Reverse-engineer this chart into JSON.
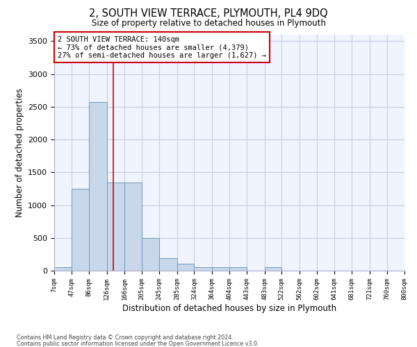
{
  "title": "2, SOUTH VIEW TERRACE, PLYMOUTH, PL4 9DQ",
  "subtitle": "Size of property relative to detached houses in Plymouth",
  "xlabel": "Distribution of detached houses by size in Plymouth",
  "ylabel": "Number of detached properties",
  "bar_color": "#c8d8ea",
  "bar_edge_color": "#7098b8",
  "bar_heights": [
    50,
    1250,
    2570,
    1340,
    1340,
    500,
    190,
    110,
    50,
    50,
    50,
    0,
    50,
    0,
    0,
    0,
    0,
    0,
    0,
    0
  ],
  "bin_edges": [
    7,
    47,
    86,
    126,
    166,
    205,
    245,
    285,
    324,
    364,
    404,
    443,
    483,
    522,
    562,
    602,
    641,
    681,
    721,
    760,
    800
  ],
  "xtick_labels": [
    "7sqm",
    "47sqm",
    "86sqm",
    "126sqm",
    "166sqm",
    "205sqm",
    "245sqm",
    "285sqm",
    "324sqm",
    "364sqm",
    "404sqm",
    "443sqm",
    "483sqm",
    "522sqm",
    "562sqm",
    "602sqm",
    "641sqm",
    "681sqm",
    "721sqm",
    "760sqm",
    "800sqm"
  ],
  "ylim": [
    0,
    3600
  ],
  "yticks": [
    0,
    500,
    1000,
    1500,
    2000,
    2500,
    3000,
    3500
  ],
  "property_size": 140,
  "red_line_color": "#cc0000",
  "annotation_text": "2 SOUTH VIEW TERRACE: 140sqm\n← 73% of detached houses are smaller (4,379)\n27% of semi-detached houses are larger (1,627) →",
  "annotation_box_color": "#cc0000",
  "footer_line1": "Contains HM Land Registry data © Crown copyright and database right 2024.",
  "footer_line2": "Contains public sector information licensed under the Open Government Licence v3.0.",
  "bg_color": "#f0f4ff",
  "grid_color": "#c8cce0"
}
